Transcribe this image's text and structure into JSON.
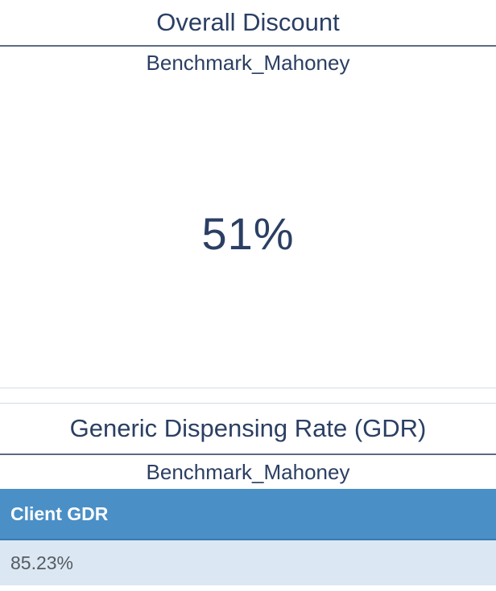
{
  "discount_panel": {
    "title": "Overall Discount",
    "subtitle": "Benchmark_Mahoney",
    "value": "51%"
  },
  "gdr_panel": {
    "title": "Generic Dispensing Rate (GDR)",
    "subtitle": "Benchmark_Mahoney",
    "table": {
      "header": "Client GDR",
      "rows": [
        {
          "value": "85.23%"
        }
      ]
    }
  },
  "colors": {
    "text": "#2b3f63",
    "header_bg": "#4a8fc6",
    "row_bg": "#dbe7f2"
  }
}
